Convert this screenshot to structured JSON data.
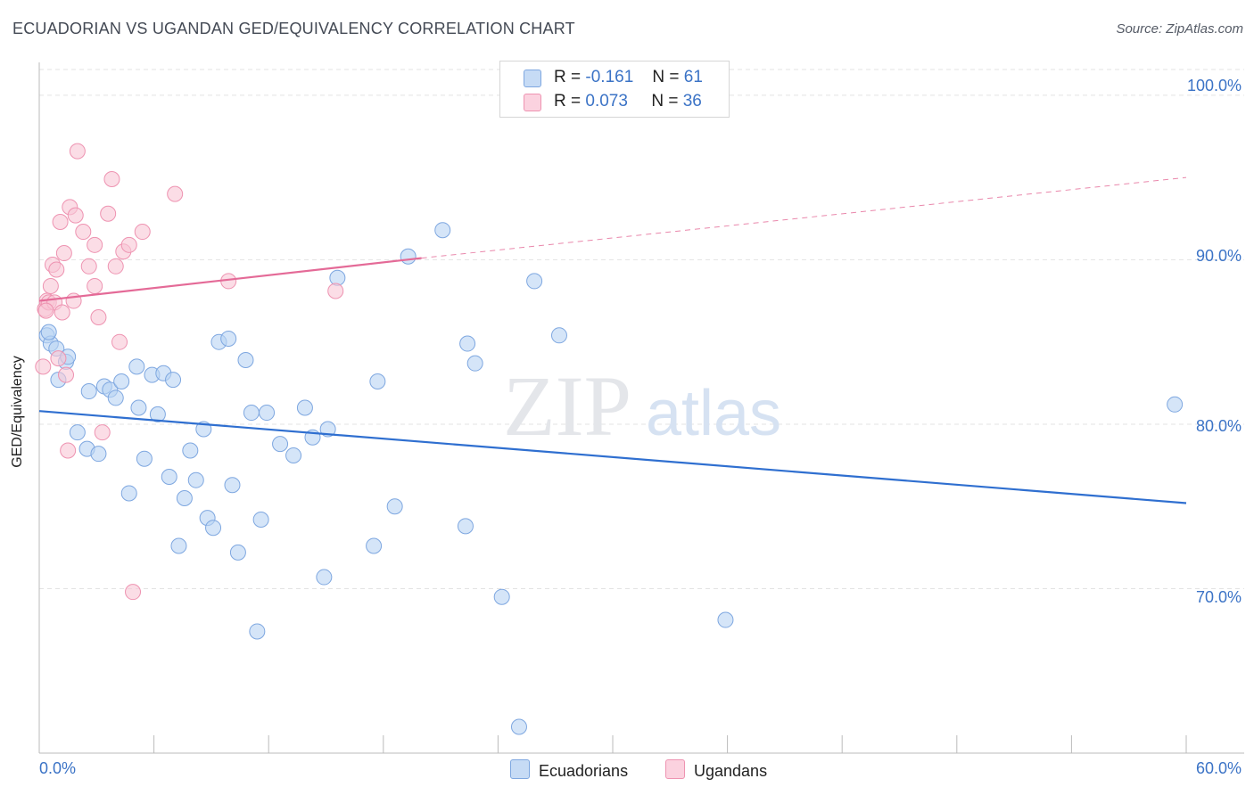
{
  "header": {
    "title": "ECUADORIAN VS UGANDAN GED/EQUIVALENCY CORRELATION CHART",
    "source": "Source: ZipAtlas.com"
  },
  "watermark": {
    "zip": "ZIP",
    "atlas": "atlas"
  },
  "legend": {
    "rows": [
      {
        "r_label": "R =",
        "r_value": "-0.161",
        "n_label": "N =",
        "n_value": "61",
        "color": "#a9c8ef"
      },
      {
        "r_label": "R =",
        "r_value": "0.073",
        "n_label": "N =",
        "n_value": "36",
        "color": "#f6b6c8"
      }
    ]
  },
  "bottom_legend": {
    "ecuadorians": "Ecuadorians",
    "ugandans": "Ugandans"
  },
  "colors": {
    "blue_line": "#2f6fd0",
    "blue_fill": "#b9d3f3",
    "blue_stroke": "#7ea7e0",
    "pink_line": "#e46a97",
    "pink_fill": "#f9c6d6",
    "pink_stroke": "#ee93b1",
    "tick_text": "#3b73c6",
    "grid": "#e3e3e3"
  },
  "chart_data": {
    "type": "scatter",
    "title": "ECUADORIAN VS UGANDAN GED/EQUIVALENCY CORRELATION CHART",
    "xlabel": "",
    "ylabel": "GED/Equivalency",
    "xlim": [
      0,
      60
    ],
    "ylim": [
      60,
      102
    ],
    "x_tick_labels": [
      "0.0%",
      "60.0%"
    ],
    "y_ticks": [
      70,
      80,
      90,
      100
    ],
    "y_tick_labels": [
      "70.0%",
      "80.0%",
      "90.0%",
      "100.0%"
    ],
    "grid": true,
    "series": [
      {
        "name": "Ecuadorians",
        "points": [
          [
            0.4,
            85.4
          ],
          [
            0.6,
            84.9
          ],
          [
            0.9,
            84.6
          ],
          [
            1.0,
            82.7
          ],
          [
            1.4,
            83.8
          ],
          [
            1.5,
            84.1
          ],
          [
            2.0,
            79.5
          ],
          [
            2.5,
            78.5
          ],
          [
            2.6,
            82.0
          ],
          [
            3.1,
            78.2
          ],
          [
            3.4,
            82.3
          ],
          [
            3.7,
            82.1
          ],
          [
            4.0,
            81.6
          ],
          [
            4.3,
            82.6
          ],
          [
            4.7,
            75.8
          ],
          [
            5.1,
            83.5
          ],
          [
            5.2,
            81.0
          ],
          [
            5.5,
            77.9
          ],
          [
            5.9,
            83.0
          ],
          [
            6.2,
            80.6
          ],
          [
            6.5,
            83.1
          ],
          [
            6.8,
            76.8
          ],
          [
            7.0,
            82.7
          ],
          [
            7.3,
            72.6
          ],
          [
            7.6,
            75.5
          ],
          [
            7.9,
            78.4
          ],
          [
            8.2,
            76.6
          ],
          [
            8.6,
            79.7
          ],
          [
            8.8,
            74.3
          ],
          [
            9.1,
            73.7
          ],
          [
            9.4,
            85.0
          ],
          [
            9.9,
            85.2
          ],
          [
            10.1,
            76.3
          ],
          [
            10.4,
            72.2
          ],
          [
            10.8,
            83.9
          ],
          [
            11.1,
            80.7
          ],
          [
            11.4,
            67.4
          ],
          [
            11.6,
            74.2
          ],
          [
            11.9,
            80.7
          ],
          [
            12.6,
            78.8
          ],
          [
            13.3,
            78.1
          ],
          [
            13.9,
            81.0
          ],
          [
            14.3,
            79.2
          ],
          [
            14.9,
            70.7
          ],
          [
            15.1,
            79.7
          ],
          [
            15.6,
            88.9
          ],
          [
            17.5,
            72.6
          ],
          [
            17.7,
            82.6
          ],
          [
            18.6,
            75.0
          ],
          [
            19.3,
            90.2
          ],
          [
            21.1,
            91.8
          ],
          [
            22.3,
            73.8
          ],
          [
            22.4,
            84.9
          ],
          [
            22.8,
            83.7
          ],
          [
            24.2,
            69.5
          ],
          [
            25.1,
            61.6
          ],
          [
            25.9,
            88.7
          ],
          [
            27.2,
            85.4
          ],
          [
            35.9,
            68.1
          ],
          [
            59.4,
            81.2
          ],
          [
            0.5,
            85.6
          ]
        ],
        "trend": {
          "x": [
            0.0,
            60.0
          ],
          "y": [
            80.8,
            75.2
          ]
        }
      },
      {
        "name": "Ugandans",
        "points": [
          [
            0.2,
            83.5
          ],
          [
            0.3,
            87.0
          ],
          [
            0.4,
            87.5
          ],
          [
            0.5,
            87.4
          ],
          [
            0.6,
            88.4
          ],
          [
            0.7,
            89.7
          ],
          [
            0.8,
            87.4
          ],
          [
            0.9,
            89.4
          ],
          [
            1.0,
            84.0
          ],
          [
            1.1,
            92.3
          ],
          [
            1.2,
            86.8
          ],
          [
            1.3,
            90.4
          ],
          [
            1.4,
            83.0
          ],
          [
            1.5,
            78.4
          ],
          [
            1.6,
            93.2
          ],
          [
            1.8,
            87.5
          ],
          [
            1.9,
            92.7
          ],
          [
            2.0,
            96.6
          ],
          [
            2.3,
            91.7
          ],
          [
            2.6,
            89.6
          ],
          [
            2.9,
            88.4
          ],
          [
            2.9,
            90.9
          ],
          [
            3.1,
            86.5
          ],
          [
            3.3,
            79.5
          ],
          [
            3.6,
            92.8
          ],
          [
            3.8,
            94.9
          ],
          [
            4.0,
            89.6
          ],
          [
            4.2,
            85.0
          ],
          [
            4.4,
            90.5
          ],
          [
            4.7,
            90.9
          ],
          [
            4.9,
            69.8
          ],
          [
            5.4,
            91.7
          ],
          [
            7.1,
            94.0
          ],
          [
            9.9,
            88.7
          ],
          [
            15.5,
            88.1
          ],
          [
            0.35,
            86.9
          ]
        ],
        "trend": {
          "x": [
            0.0,
            20.0
          ],
          "y": [
            87.5,
            90.1
          ]
        },
        "trend_extension": {
          "x": [
            20.0,
            60.0
          ],
          "y": [
            90.1,
            95.0
          ]
        }
      }
    ]
  }
}
